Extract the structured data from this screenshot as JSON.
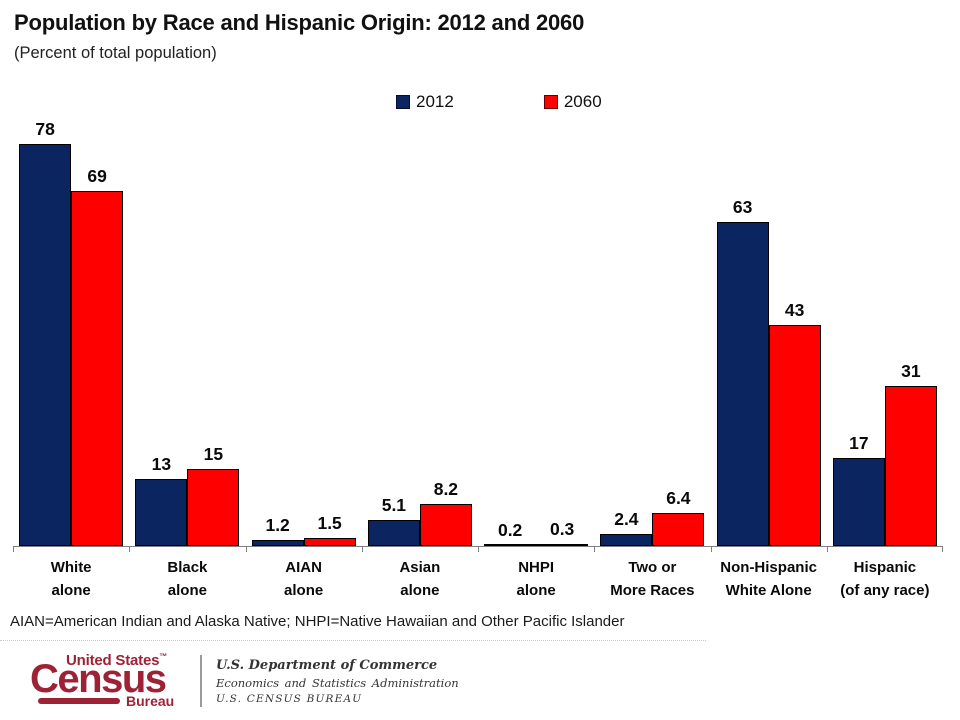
{
  "header": {
    "title": "Population by Race and Hispanic Origin: 2012 and 2060",
    "subtitle": "(Percent of total population)"
  },
  "legend": {
    "items": [
      {
        "label": "2012",
        "color": "#0B2560"
      },
      {
        "label": "2060",
        "color": "#FF0000"
      }
    ]
  },
  "chart_data": {
    "type": "bar",
    "title": "Population by Race and Hispanic Origin: 2012 and 2060",
    "subtitle": "(Percent of total population)",
    "unit": "percent of total population",
    "categories": [
      "White alone",
      "Black alone",
      "AIAN alone",
      "Asian alone",
      "NHPI alone",
      "Two or More Races",
      "Non-Hispanic White Alone",
      "Hispanic (of any race)"
    ],
    "category_label_lines": [
      [
        "White",
        "alone"
      ],
      [
        "Black",
        "alone"
      ],
      [
        "AIAN",
        "alone"
      ],
      [
        "Asian",
        "alone"
      ],
      [
        "NHPI",
        "alone"
      ],
      [
        "Two or",
        "More Races"
      ],
      [
        "Non-Hispanic",
        "White Alone"
      ],
      [
        "Hispanic",
        "(of any race)"
      ]
    ],
    "series": [
      {
        "name": "2012",
        "color": "#0B2560",
        "values": [
          78,
          13,
          1.2,
          5.1,
          0.2,
          2.4,
          63,
          17
        ],
        "labels": [
          "78",
          "13",
          "1.2",
          "5.1",
          "0.2",
          "2.4",
          "63",
          "17"
        ]
      },
      {
        "name": "2060",
        "color": "#FF0000",
        "values": [
          69,
          15,
          1.5,
          8.2,
          0.3,
          6.4,
          43,
          31
        ],
        "labels": [
          "69",
          "15",
          "1.5",
          "8.2",
          "0.3",
          "6.4",
          "43",
          "31"
        ]
      }
    ],
    "ylim": [
      0,
      80
    ],
    "value_axis_visible": false,
    "grid": false,
    "data_labels": true,
    "legend_position": "top-center",
    "bar_border_color": "#000000",
    "axis_color": "#808080"
  },
  "footnote": "AIAN=American Indian and Alaska Native; NHPI=Native Hawaiian and Other Pacific Islander",
  "footer": {
    "logo": {
      "top": "United States",
      "tm": "™",
      "main": "Census",
      "bottom": "Bureau",
      "color": "#9E2236"
    },
    "lines": [
      "U.S. Department of Commerce",
      "Economics and Statistics Administration",
      "U.S. CENSUS BUREAU"
    ]
  }
}
